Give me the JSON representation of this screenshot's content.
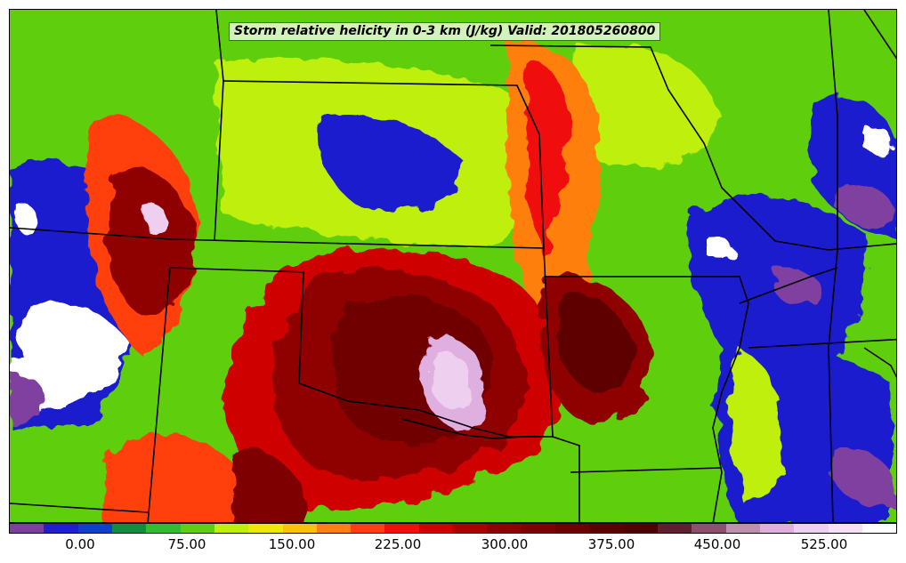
{
  "title": "Storm relative helicity in 0-3 km (J/kg) Valid: 201805260800",
  "colorbar": {
    "colors": [
      "#7f3f9f",
      "#1f1fcf",
      "#0f3fcf",
      "#0f8f3f",
      "#2fbf2f",
      "#5fcf0f",
      "#bfef0f",
      "#efe70f",
      "#ffbf0f",
      "#ff7f0f",
      "#ff3f0f",
      "#ef0f0f",
      "#cf0000",
      "#af0000",
      "#8f0000",
      "#7f0000",
      "#6f0000",
      "#5f0000",
      "#4f0000",
      "#5f1f2f",
      "#8f4f6f",
      "#bf8faf",
      "#dfafdf",
      "#efcfef",
      "#f7dff7",
      "#ffffff"
    ],
    "ticks": [
      "0.00",
      "75.00",
      "150.00",
      "225.00",
      "300.00",
      "375.00",
      "450.00",
      "525.00"
    ]
  },
  "icons": {
    "map": "weather-model-field-map"
  }
}
